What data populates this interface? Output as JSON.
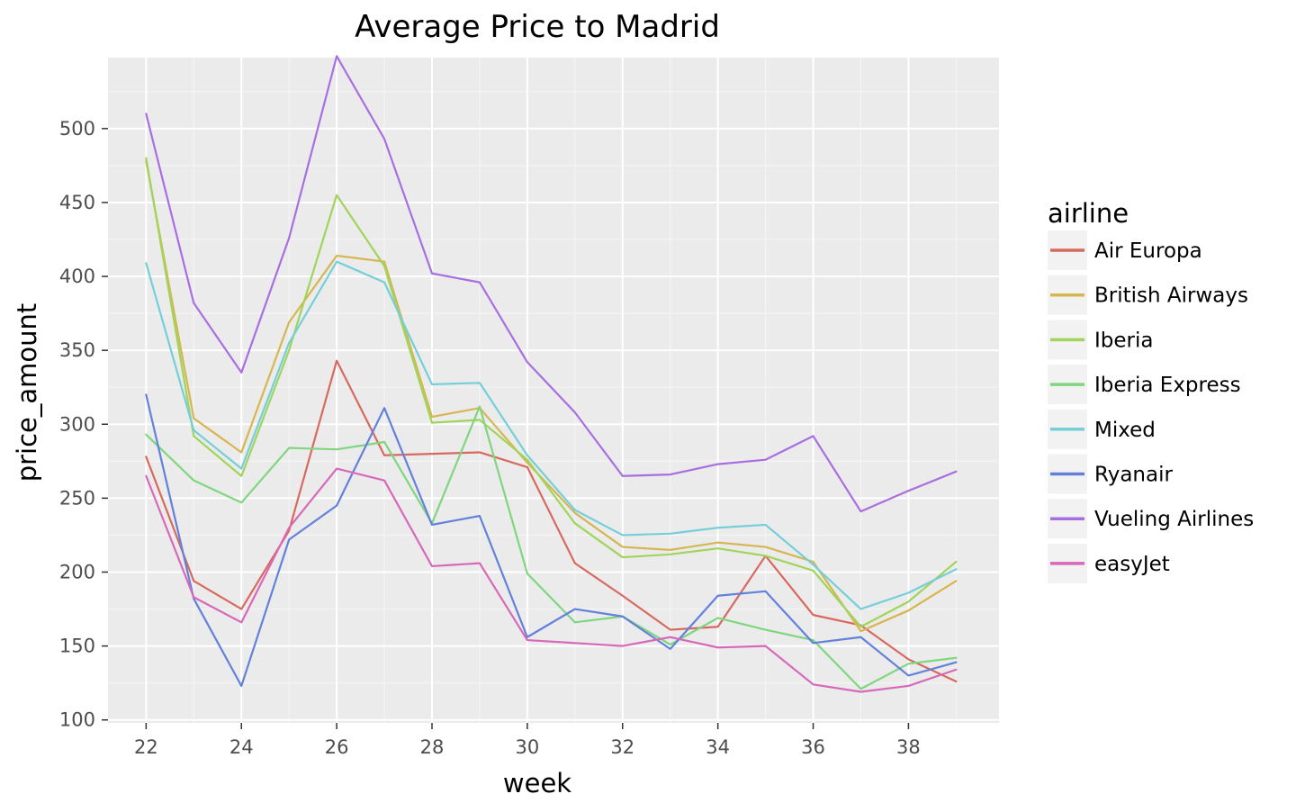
{
  "chart_data": {
    "type": "line",
    "title": "Average Price to Madrid",
    "xlabel": "week",
    "ylabel": "price_amount",
    "xlim": [
      21.2,
      39.9
    ],
    "ylim": [
      98,
      548
    ],
    "x_ticks": [
      22,
      24,
      26,
      28,
      30,
      32,
      34,
      36,
      38
    ],
    "y_ticks": [
      100,
      150,
      200,
      250,
      300,
      350,
      400,
      450,
      500
    ],
    "x_minor": [
      23,
      25,
      27,
      29,
      31,
      33,
      35,
      37,
      39
    ],
    "y_minor": [
      125,
      175,
      225,
      275,
      325,
      375,
      425,
      475,
      525
    ],
    "grid": true,
    "legend": {
      "title": "airline",
      "position": "right"
    },
    "x": [
      22,
      23,
      24,
      25,
      26,
      27,
      28,
      29,
      30,
      31,
      32,
      33,
      34,
      35,
      36,
      37,
      38,
      39
    ],
    "series": [
      {
        "name": "Air Europa",
        "color": "#d7695f",
        "values": [
          278,
          194,
          175,
          228,
          343,
          279,
          280,
          281,
          271,
          206,
          184,
          161,
          163,
          211,
          171,
          164,
          141,
          126
        ]
      },
      {
        "name": "British Airways",
        "color": "#d6b653",
        "values": [
          478,
          304,
          281,
          369,
          414,
          410,
          305,
          311,
          274,
          240,
          217,
          215,
          220,
          217,
          207,
          160,
          174,
          194
        ]
      },
      {
        "name": "Iberia",
        "color": "#a0d45a",
        "values": [
          480,
          292,
          265,
          350,
          455,
          407,
          301,
          303,
          276,
          233,
          210,
          212,
          216,
          211,
          201,
          163,
          180,
          207
        ]
      },
      {
        "name": "Iberia Express",
        "color": "#7fd67f",
        "values": [
          293,
          262,
          247,
          284,
          283,
          288,
          233,
          312,
          199,
          166,
          170,
          151,
          169,
          161,
          154,
          121,
          138,
          142
        ]
      },
      {
        "name": "Mixed",
        "color": "#74cfd8",
        "values": [
          409,
          296,
          270,
          355,
          410,
          396,
          327,
          328,
          279,
          242,
          225,
          226,
          230,
          232,
          205,
          175,
          186,
          202
        ]
      },
      {
        "name": "Ryanair",
        "color": "#6380db",
        "values": [
          320,
          182,
          123,
          222,
          245,
          311,
          232,
          238,
          156,
          175,
          170,
          148,
          184,
          187,
          152,
          156,
          130,
          139
        ]
      },
      {
        "name": "Vueling Airlines",
        "color": "#a96ee0",
        "values": [
          510,
          382,
          335,
          426,
          549,
          493,
          402,
          396,
          342,
          308,
          265,
          266,
          273,
          276,
          292,
          241,
          255,
          268
        ]
      },
      {
        "name": "easyJet",
        "color": "#d869ba",
        "values": [
          265,
          183,
          166,
          230,
          270,
          262,
          204,
          206,
          154,
          152,
          150,
          156,
          149,
          150,
          124,
          119,
          123,
          134
        ]
      }
    ]
  }
}
